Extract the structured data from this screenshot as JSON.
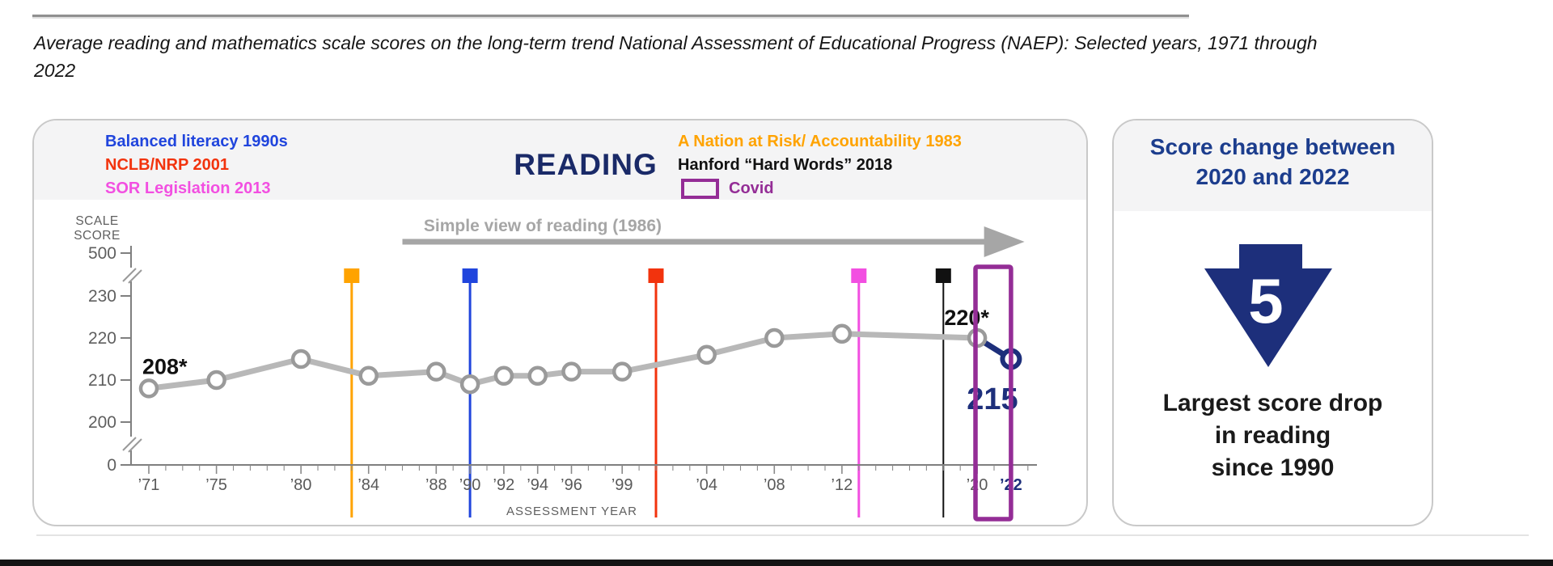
{
  "page": {
    "title_line1": "Average reading and mathematics scale scores on the long-term trend National Assessment of Educational Progress (NAEP): Selected years, 1971 through",
    "title_line2": "2022"
  },
  "colors": {
    "navy_heading": "#1a2a68",
    "navy_accent": "#1d2f7b",
    "navy_panel_title": "#1c3d8d",
    "blue": "#2045DD",
    "red": "#F2330D",
    "magenta": "#F24FE1",
    "orange": "#FFA300",
    "purple": "#942D96",
    "black": "#111111",
    "series_gray": "#b8b8b8",
    "marker_gray": "#9a9a9a",
    "axis_gray": "#7f7f7f",
    "tick_text_gray": "#595959",
    "annotation_gray": "#a6a6a6"
  },
  "reading_panel": {
    "heading": "READING",
    "legend_left": [
      {
        "text": "Balanced literacy 1990s",
        "color": "#2045DD"
      },
      {
        "text": "NCLB/NRP 2001",
        "color": "#F2330D"
      },
      {
        "text": "SOR Legislation 2013",
        "color": "#F24FE1"
      }
    ],
    "legend_right": [
      {
        "text": "A Nation at Risk/ Accountability 1983",
        "color": "#FFA300"
      },
      {
        "text": "Hanford “Hard Words” 2018",
        "color": "#111111"
      },
      {
        "text": "Covid",
        "color": "#942D96",
        "swatch": true
      }
    ]
  },
  "chart_data": {
    "type": "line",
    "title": "READING",
    "x_label": "ASSESSMENT YEAR",
    "y_label": "SCALE SCORE",
    "x": [
      1971,
      1975,
      1980,
      1984,
      1988,
      1990,
      1992,
      1994,
      1996,
      1999,
      2004,
      2008,
      2012,
      2020,
      2022
    ],
    "tick_labels": [
      "’71",
      "’75",
      "’80",
      "’84",
      "’88",
      "’90",
      "’92",
      "’94",
      "’96",
      "’99",
      "’04",
      "’08",
      "’12",
      "’20",
      "’22"
    ],
    "values": [
      208,
      210,
      215,
      211,
      212,
      209,
      211,
      211,
      212,
      212,
      216,
      220,
      221,
      220,
      215
    ],
    "y_ticks": [
      0,
      200,
      210,
      220,
      230,
      500
    ],
    "y_axis_break": true,
    "ylim_display": [
      200,
      230
    ],
    "grid": false,
    "series_color": "#b8b8b8",
    "final_segment_color": "#1d2f7b",
    "point_annotations": [
      {
        "x": 1971,
        "text": "208*"
      },
      {
        "x": 2020,
        "text": "220*"
      },
      {
        "x": 2022,
        "text": "215"
      }
    ],
    "events": [
      {
        "year": 1983,
        "label": "A Nation at Risk/ Accountability 1983",
        "color": "#FFA300"
      },
      {
        "year": 1990,
        "label": "Balanced literacy 1990s",
        "color": "#2045DD"
      },
      {
        "year": 2001,
        "label": "NCLB/NRP 2001",
        "color": "#F2330D"
      },
      {
        "year": 2013,
        "label": "SOR Legislation 2013",
        "color": "#F24FE1"
      },
      {
        "year": 2018,
        "label": "Hanford “Hard Words” 2018",
        "color": "#111111"
      }
    ],
    "covid_box": {
      "label": "Covid",
      "color": "#942D96",
      "from_year": 2019.9,
      "to_year": 2022.0
    },
    "annotation_arrow": {
      "text": "Simple view of reading (1986)",
      "from_year": 1986,
      "to_year": 2022.8,
      "text_anchor_year": 1994.3
    }
  },
  "score_panel": {
    "title_line1": "Score change between",
    "title_line2": "2020 and 2022",
    "value": "5",
    "caption": "Largest score drop\nin reading\nsince 1990"
  }
}
